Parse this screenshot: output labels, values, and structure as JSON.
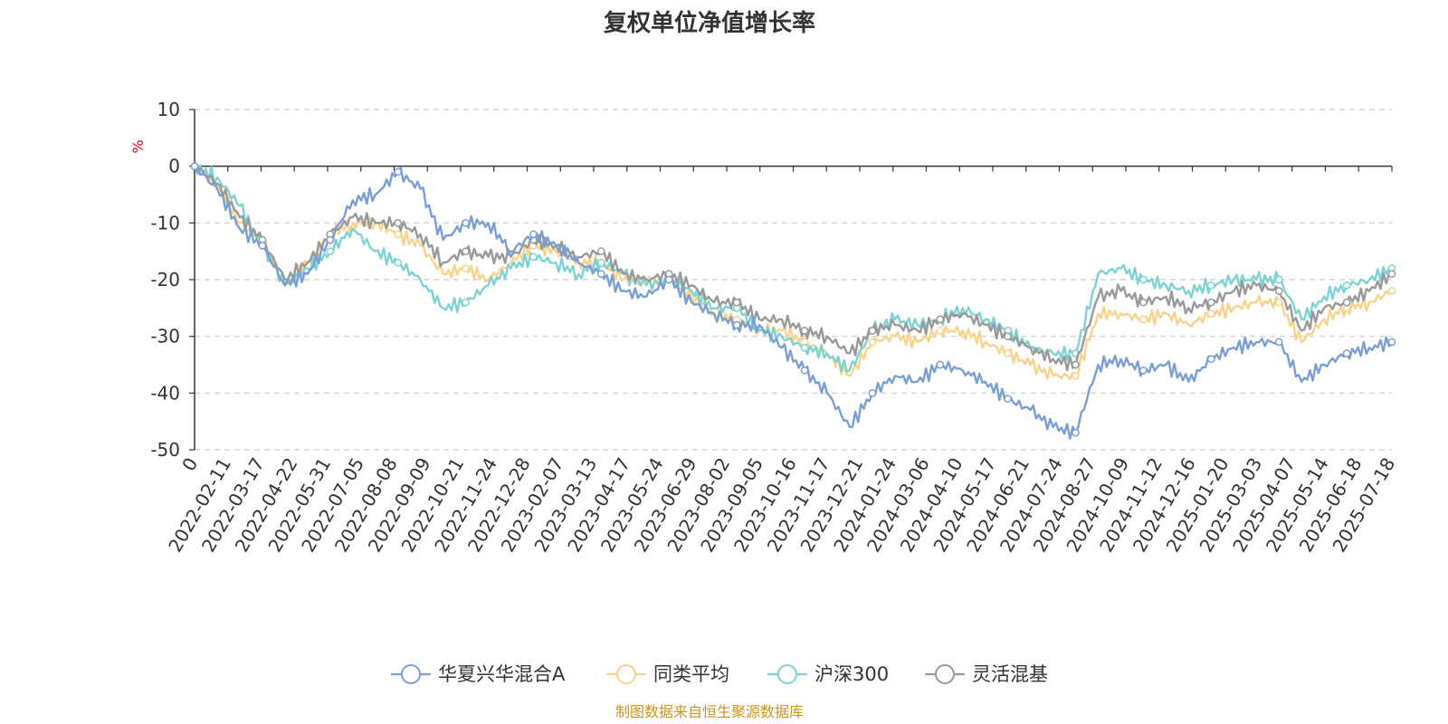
{
  "chart_data": {
    "type": "line",
    "title": "复权单位净值增长率",
    "ylabel": "%",
    "ylim": [
      -50,
      10
    ],
    "yticks": [
      "10",
      "0",
      "-10",
      "-20",
      "-30",
      "-40",
      "-50"
    ],
    "xticks": [
      "0",
      "2022-02-11",
      "2022-03-17",
      "2022-04-22",
      "2022-05-31",
      "2022-07-05",
      "2022-08-08",
      "2022-09-09",
      "2022-10-21",
      "2022-11-24",
      "2022-12-28",
      "2023-02-07",
      "2023-03-13",
      "2023-04-17",
      "2023-05-24",
      "2023-06-29",
      "2023-08-02",
      "2023-09-05",
      "2023-10-16",
      "2023-11-17",
      "2023-12-21",
      "2024-01-24",
      "2024-03-06",
      "2024-04-10",
      "2024-05-17",
      "2024-06-21",
      "2024-07-24",
      "2024-08-27",
      "2024-10-09",
      "2024-11-12",
      "2024-12-16",
      "2025-01-20",
      "2025-03-03",
      "2025-04-07",
      "2025-05-14",
      "2025-06-18",
      "2025-07-18"
    ],
    "grid": true,
    "legend_position": "bottom",
    "series": [
      {
        "name": "华夏兴华混合A",
        "color": "#7b9fd4",
        "values": [
          0,
          -4,
          -11,
          -14,
          -21,
          -19,
          -13,
          -6,
          -5,
          -1,
          -4,
          -13,
          -10,
          -10,
          -15,
          -12,
          -14,
          -17,
          -19,
          -22,
          -23,
          -20,
          -24,
          -26,
          -28,
          -28,
          -32,
          -36,
          -40,
          -46,
          -40,
          -37,
          -38,
          -35,
          -36,
          -38,
          -41,
          -43,
          -46,
          -47,
          -35,
          -34,
          -36,
          -35,
          -38,
          -34,
          -32,
          -31,
          -31,
          -38,
          -35,
          -33,
          -32,
          -31
        ]
      },
      {
        "name": "同类平均",
        "color": "#f9d38c",
        "values": [
          0,
          -3,
          -10,
          -13,
          -21,
          -17,
          -12,
          -10,
          -10,
          -12,
          -14,
          -19,
          -18,
          -20,
          -17,
          -14,
          -15,
          -17,
          -17,
          -20,
          -21,
          -20,
          -23,
          -26,
          -27,
          -29,
          -29,
          -31,
          -33,
          -37,
          -31,
          -30,
          -31,
          -29,
          -29,
          -31,
          -33,
          -35,
          -37,
          -37,
          -26,
          -26,
          -27,
          -26,
          -28,
          -26,
          -25,
          -24,
          -24,
          -31,
          -27,
          -25,
          -24,
          -22
        ]
      },
      {
        "name": "沪深300",
        "color": "#7dd3d3",
        "values": [
          0,
          -2,
          -7,
          -14,
          -21,
          -18,
          -15,
          -11,
          -15,
          -17,
          -20,
          -25,
          -24,
          -21,
          -18,
          -16,
          -17,
          -19,
          -17,
          -19,
          -21,
          -20,
          -22,
          -25,
          -25,
          -29,
          -30,
          -32,
          -33,
          -36,
          -29,
          -27,
          -28,
          -27,
          -25,
          -27,
          -29,
          -32,
          -33,
          -33,
          -19,
          -18,
          -20,
          -21,
          -22,
          -21,
          -20,
          -20,
          -20,
          -27,
          -23,
          -21,
          -20,
          -18
        ]
      },
      {
        "name": "灵活混基",
        "color": "#999999",
        "values": [
          0,
          -3,
          -9,
          -13,
          -20,
          -17,
          -12,
          -9,
          -10,
          -10,
          -12,
          -17,
          -15,
          -16,
          -16,
          -13,
          -14,
          -16,
          -15,
          -19,
          -20,
          -19,
          -21,
          -24,
          -24,
          -27,
          -27,
          -29,
          -30,
          -33,
          -29,
          -28,
          -29,
          -27,
          -26,
          -28,
          -30,
          -32,
          -34,
          -35,
          -23,
          -22,
          -24,
          -23,
          -25,
          -24,
          -22,
          -21,
          -22,
          -29,
          -25,
          -24,
          -22,
          -19
        ]
      }
    ]
  },
  "legend": {
    "items": [
      "华夏兴华混合A",
      "同类平均",
      "沪深300",
      "灵活混基"
    ]
  },
  "footer": {
    "source": "制图数据来自恒生聚源数据库"
  }
}
